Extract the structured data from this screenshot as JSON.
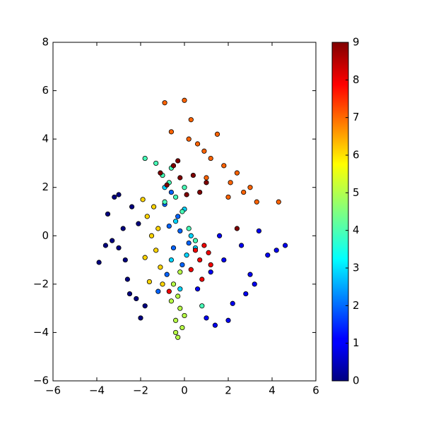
{
  "chart_data": {
    "type": "scatter",
    "colormap": "jet",
    "edgecolor": "#000000",
    "x": [
      -3.9,
      -3.5,
      -3.2,
      -3.0,
      -2.8,
      -2.6,
      -2.4,
      -2.2,
      -2.0,
      -3.3,
      -2.7,
      -2.1,
      -3.6,
      -2.5,
      -1.8,
      -3.0,
      0.6,
      1.0,
      1.4,
      1.8,
      2.2,
      2.6,
      3.0,
      3.4,
      3.8,
      4.2,
      4.6,
      1.2,
      2.0,
      2.8,
      1.6,
      3.2,
      -0.9,
      -0.7,
      -0.5,
      -0.3,
      -0.1,
      0.2,
      -0.8,
      -0.6,
      -0.2,
      -1.2,
      -0.4,
      0.1,
      0.3,
      -0.6,
      0.0,
      0.5,
      -0.9,
      -0.2,
      -1.8,
      -1.3,
      -1.0,
      -0.7,
      -0.4,
      -0.1,
      0.2,
      0.5,
      -0.6,
      0.0,
      0.8,
      -0.9,
      -0.5,
      -0.3,
      -0.2,
      -0.4,
      -0.1,
      -0.6,
      -0.3,
      -0.2,
      0.0,
      -0.4,
      -1.9,
      -1.7,
      -1.5,
      -1.3,
      -1.1,
      -1.6,
      -1.4,
      -1.2,
      -1.8,
      -1.0,
      -0.9,
      -0.6,
      0.0,
      0.3,
      0.6,
      0.9,
      1.2,
      1.5,
      1.8,
      2.1,
      2.4,
      2.7,
      3.0,
      3.3,
      0.2,
      1.0,
      2.0,
      4.3,
      0.5,
      0.7,
      0.9,
      1.1,
      0.3,
      0.8,
      1.2,
      -0.7,
      -1.1,
      -0.8,
      -0.5,
      -0.2,
      0.1,
      0.4,
      0.7,
      1.0,
      -0.3,
      2.4
    ],
    "y": [
      -1.1,
      0.9,
      1.6,
      -0.5,
      0.3,
      -1.8,
      1.2,
      -2.6,
      -3.4,
      -0.2,
      -1.0,
      0.5,
      -0.4,
      -2.4,
      -2.9,
      1.7,
      -2.2,
      -3.4,
      -3.7,
      -1.0,
      -2.8,
      -0.4,
      -1.6,
      0.2,
      -0.8,
      -0.6,
      -0.4,
      -1.5,
      -3.5,
      -2.4,
      0.0,
      -2.0,
      1.3,
      0.4,
      -0.5,
      0.8,
      -1.2,
      -0.3,
      -1.6,
      1.8,
      0.2,
      -2.3,
      0.6,
      -0.8,
      0.0,
      -1.0,
      1.1,
      -0.5,
      2.0,
      -2.2,
      3.2,
      3.0,
      2.5,
      2.2,
      1.6,
      1.0,
      0.3,
      -0.2,
      2.8,
      2.0,
      -2.9,
      1.4,
      -2.0,
      -2.5,
      -3.0,
      -3.5,
      -3.8,
      -2.7,
      -4.2,
      -1.5,
      -3.3,
      -4.0,
      1.5,
      0.8,
      0.0,
      -0.6,
      -1.3,
      -1.9,
      1.2,
      0.3,
      -0.9,
      -2.0,
      5.5,
      4.3,
      5.6,
      4.8,
      3.8,
      3.5,
      3.2,
      4.2,
      2.9,
      2.2,
      2.6,
      1.8,
      2.0,
      1.4,
      4.0,
      2.4,
      1.6,
      1.4,
      -0.6,
      -1.0,
      -0.4,
      -0.7,
      -1.4,
      -1.8,
      -1.2,
      -2.3,
      2.6,
      2.1,
      2.9,
      2.4,
      1.7,
      2.5,
      1.8,
      2.2,
      3.1,
      0.3
    ],
    "c": [
      0,
      0,
      0,
      0,
      0,
      0,
      0,
      0,
      0,
      0,
      0,
      0,
      0,
      0,
      0,
      0,
      1,
      1,
      1,
      1,
      1,
      1,
      1,
      1,
      1,
      1,
      1,
      1,
      1,
      1,
      1,
      1,
      2,
      2,
      2,
      2,
      2,
      2,
      2,
      2,
      2,
      2,
      3,
      3,
      3,
      3,
      3,
      3,
      3,
      3,
      4,
      4,
      4,
      4,
      4,
      4,
      4,
      4,
      4,
      4,
      4,
      4,
      5,
      5,
      5,
      5,
      5,
      5,
      5,
      5,
      5,
      5,
      6,
      6,
      6,
      6,
      6,
      6,
      6,
      6,
      6,
      6,
      7,
      7,
      7,
      7,
      7,
      7,
      7,
      7,
      7,
      7,
      7,
      7,
      7,
      7,
      7,
      7,
      7,
      7,
      8,
      8,
      8,
      8,
      8,
      8,
      8,
      8,
      9,
      9,
      9,
      9,
      9,
      9,
      9,
      9,
      9,
      9
    ],
    "xlim": [
      -6,
      6
    ],
    "ylim": [
      -6,
      8
    ],
    "clim": [
      0,
      9
    ],
    "xticks": [
      {
        "value": -6,
        "label": "−6"
      },
      {
        "value": -4,
        "label": "−4"
      },
      {
        "value": -2,
        "label": "−2"
      },
      0,
      2,
      4,
      6
    ],
    "yticks": [
      {
        "value": -6,
        "label": "−6"
      },
      {
        "value": -4,
        "label": "−4"
      },
      {
        "value": -2,
        "label": "−2"
      },
      0,
      2,
      4,
      6,
      8
    ],
    "cticks": [
      0,
      1,
      2,
      3,
      4,
      5,
      6,
      7,
      8,
      9
    ]
  }
}
